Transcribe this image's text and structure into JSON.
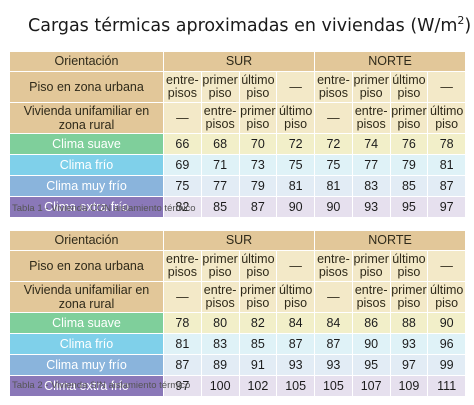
{
  "title": "Cargas térmicas aproximadas en viviendas (W/m",
  "title_exp": "2",
  "title_close": ")",
  "tables": [
    {
      "caption": "Tabla 1 - Vivienda CON aislamiento térmico",
      "orientation_label": "Orientación",
      "sur_label": "SUR",
      "norte_label": "NORTE",
      "urban_label": "Piso en zona urbana",
      "urban_cells": [
        "entre-pisos",
        "primer piso",
        "último piso",
        "—",
        "entre-pisos",
        "primer piso",
        "último piso",
        "—"
      ],
      "rural_label": "Vivienda unifamiliar en zona rural",
      "rural_cells": [
        "—",
        "entre-pisos",
        "primer piso",
        "último piso",
        "—",
        "entre-pisos",
        "primer piso",
        "último piso"
      ],
      "climates": [
        {
          "label": "Clima suave",
          "values": [
            "66",
            "68",
            "70",
            "72",
            "72",
            "74",
            "76",
            "78"
          ]
        },
        {
          "label": "Clima frío",
          "values": [
            "69",
            "71",
            "73",
            "75",
            "75",
            "77",
            "79",
            "81"
          ]
        },
        {
          "label": "Clima muy frío",
          "values": [
            "75",
            "77",
            "79",
            "81",
            "81",
            "83",
            "85",
            "87"
          ]
        },
        {
          "label": "Clima extra frío",
          "values": [
            "82",
            "85",
            "87",
            "90",
            "90",
            "93",
            "95",
            "97"
          ]
        }
      ]
    },
    {
      "caption": "Tabla 2 - Vivienda SIN aislamiento térmico",
      "orientation_label": "Orientación",
      "sur_label": "SUR",
      "norte_label": "NORTE",
      "urban_label": "Piso en zona urbana",
      "urban_cells": [
        "entre-pisos",
        "primer piso",
        "último piso",
        "—",
        "entre-pisos",
        "primer piso",
        "último piso",
        "—"
      ],
      "rural_label": "Vivienda unifamiliar en zona rural",
      "rural_cells": [
        "—",
        "entre-pisos",
        "primer piso",
        "último piso",
        "—",
        "entre-pisos",
        "primer piso",
        "último piso"
      ],
      "climates": [
        {
          "label": "Clima suave",
          "values": [
            "78",
            "80",
            "82",
            "84",
            "84",
            "86",
            "88",
            "90"
          ]
        },
        {
          "label": "Clima frío",
          "values": [
            "81",
            "83",
            "85",
            "87",
            "87",
            "90",
            "93",
            "96"
          ]
        },
        {
          "label": "Clima muy frío",
          "values": [
            "87",
            "89",
            "91",
            "93",
            "93",
            "95",
            "97",
            "99"
          ]
        },
        {
          "label": "Clima extra frío",
          "values": [
            "97",
            "100",
            "102",
            "105",
            "105",
            "107",
            "109",
            "111"
          ]
        }
      ]
    }
  ]
}
